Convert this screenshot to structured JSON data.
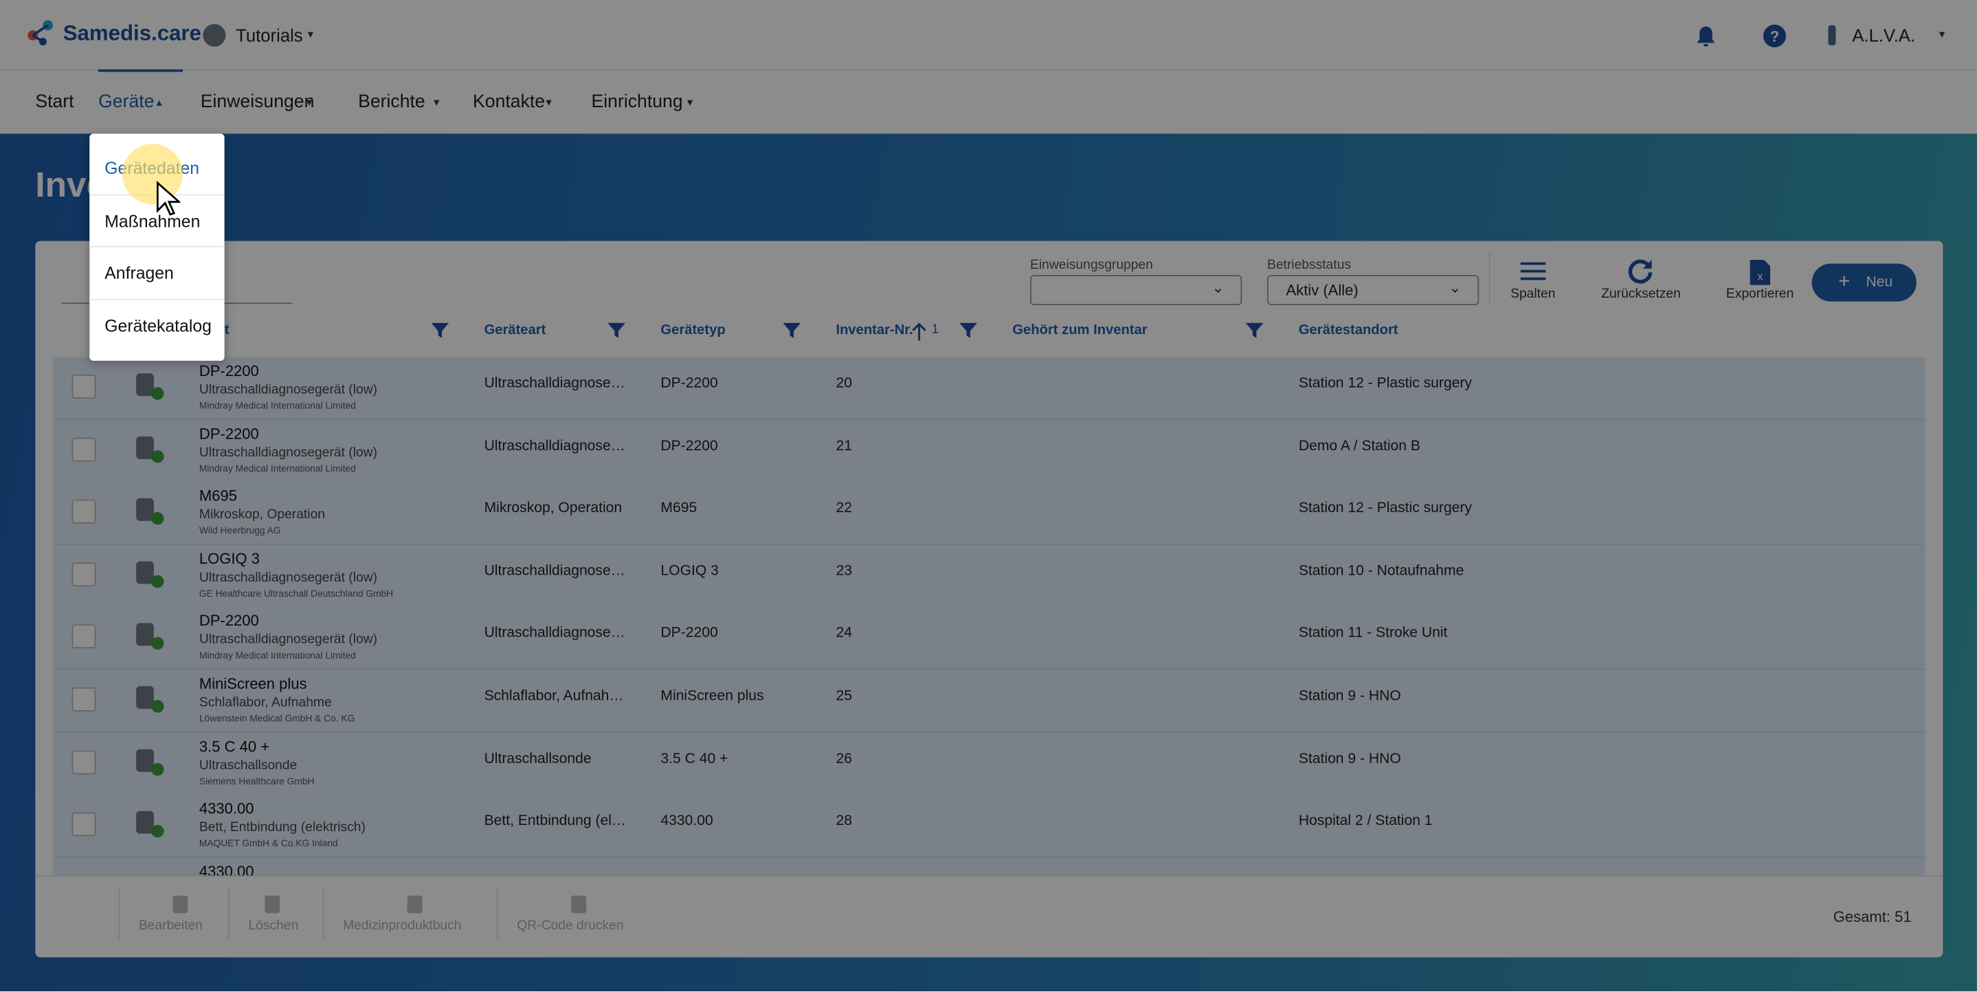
{
  "header": {
    "logo": "Samedis.care",
    "tenant": "Tutorials",
    "user": "A.L.V.A."
  },
  "nav": [
    "Start",
    "Geräte",
    "Einweisungen",
    "Berichte",
    "Kontakte",
    "Einrichtung"
  ],
  "dropdown": [
    "Gerätedaten",
    "Maßnahmen",
    "Anfragen",
    "Gerätekatalog"
  ],
  "page_title": "Inventar",
  "filters": {
    "group_label": "Einweisungsgruppen",
    "status_label": "Betriebsstatus",
    "status_value": "Aktiv (Alle)"
  },
  "toolbar": [
    "Spalten",
    "Zurücksetzen",
    "Exportieren",
    "Neu"
  ],
  "columns": {
    "device": "Gerät",
    "kind": "Geräteart",
    "type": "Gerätetyp",
    "inv": "Inventar-Nr.",
    "sort_index": "1",
    "belongs": "Gehört zum Inventar",
    "location": "Gerätestandort"
  },
  "rows": [
    {
      "name": "DP-2200",
      "category": "Ultraschalldiagnosegerät (low)",
      "maker": "Mindray Medical International Limited",
      "kind": "Ultraschalldiagnose…",
      "type": "DP-2200",
      "inv": 20,
      "location": "Station 12 - Plastic surgery"
    },
    {
      "name": "DP-2200",
      "category": "Ultraschalldiagnosegerät (low)",
      "maker": "Mindray Medical International Limited",
      "kind": "Ultraschalldiagnose…",
      "type": "DP-2200",
      "inv": 21,
      "location": "Demo A / Station B"
    },
    {
      "name": "M695",
      "category": "Mikroskop, Operation",
      "maker": "Wild Heerbrugg AG",
      "kind": "Mikroskop, Operation",
      "type": "M695",
      "inv": 22,
      "location": "Station 12 - Plastic surgery"
    },
    {
      "name": "LOGIQ 3",
      "category": "Ultraschalldiagnosegerät (low)",
      "maker": "GE Healthcare Ultraschall Deutschland GmbH",
      "kind": "Ultraschalldiagnose…",
      "type": "LOGIQ 3",
      "inv": 23,
      "location": "Station 10 - Notaufnahme"
    },
    {
      "name": "DP-2200",
      "category": "Ultraschalldiagnosegerät (low)",
      "maker": "Mindray Medical International Limited",
      "kind": "Ultraschalldiagnose…",
      "type": "DP-2200",
      "inv": 24,
      "location": "Station 11 - Stroke Unit"
    },
    {
      "name": "MiniScreen plus",
      "category": "Schlaflabor, Aufnahme",
      "maker": "Löwenstein Medical GmbH & Co. KG",
      "kind": "Schlaflabor, Aufnah…",
      "type": "MiniScreen plus",
      "inv": 25,
      "location": "Station 9 - HNO"
    },
    {
      "name": "3.5 C 40 +",
      "category": "Ultraschallsonde",
      "maker": "Siemens Healthcare GmbH",
      "kind": "Ultraschallsonde",
      "type": "3.5 C 40 +",
      "inv": 26,
      "location": "Station 9 - HNO"
    },
    {
      "name": "4330.00",
      "category": "Bett, Entbindung (elektrisch)",
      "maker": "MAQUET GmbH & Co.KG Inland",
      "kind": "Bett, Entbindung (el…",
      "type": "4330.00",
      "inv": 28,
      "location": "Hospital 2 / Station 1"
    },
    {
      "name": "4330.00"
    }
  ],
  "footer": {
    "actions": [
      "Bearbeiten",
      "Löschen",
      "Medizinproduktbuch",
      "QR-Code drucken"
    ],
    "total": "Gesamt: 51"
  }
}
